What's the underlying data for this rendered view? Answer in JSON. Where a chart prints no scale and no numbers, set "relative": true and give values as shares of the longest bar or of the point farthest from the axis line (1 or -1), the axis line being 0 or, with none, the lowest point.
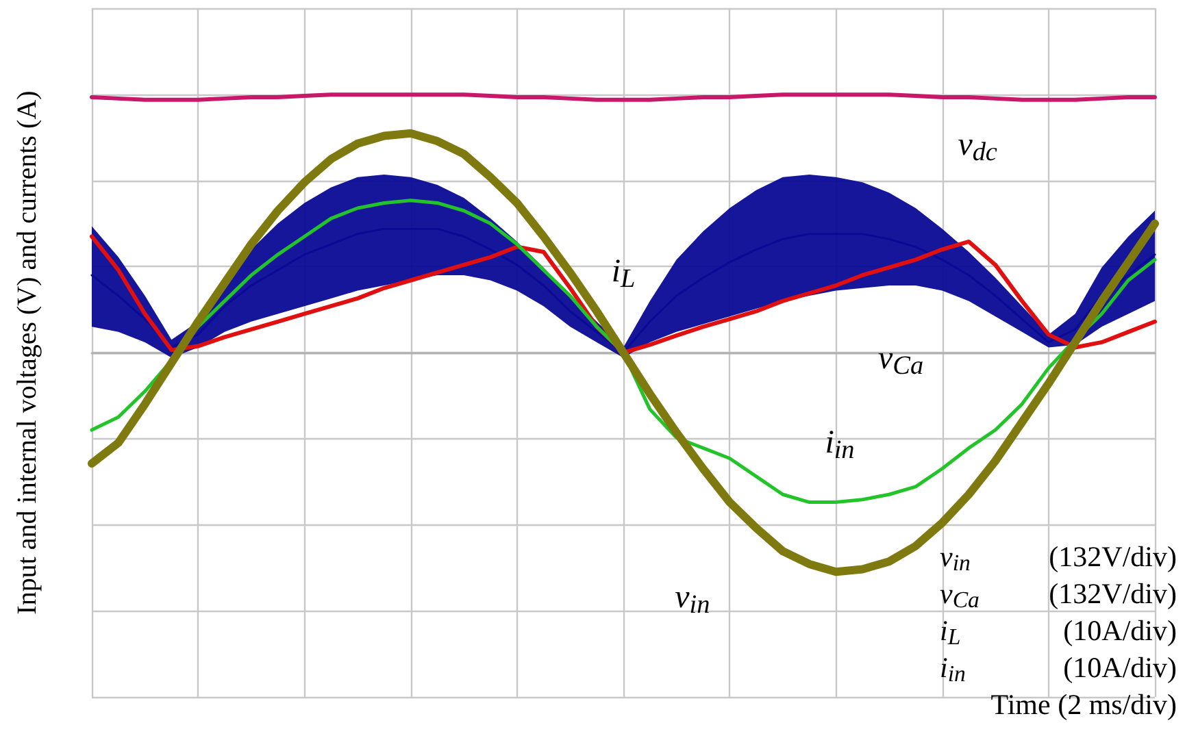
{
  "chart_data": {
    "type": "line",
    "relative": true,
    "ylabel": "Input and internal voltages (V) and currents (A)",
    "categories": [
      null,
      null,
      null,
      null,
      null,
      null,
      null,
      null,
      null,
      null,
      null,
      null,
      null,
      null,
      null,
      null,
      null,
      null,
      null,
      null,
      null,
      null,
      null,
      null,
      null,
      null,
      null,
      null,
      null,
      null,
      null,
      null,
      null,
      null,
      null,
      null,
      null,
      null,
      null,
      null,
      null
    ],
    "series": [
      {
        "name": "i$_{L}$",
        "color": "#0a0a96",
        "values": [
          0.3,
          0.22,
          0.13,
          0.02,
          0.07,
          0.18,
          0.26,
          0.32,
          0.38,
          0.42,
          0.46,
          0.48,
          0.48,
          0.48,
          0.45,
          0.4,
          0.34,
          0.26,
          0.16,
          0.08,
          0,
          0.12,
          0.22,
          0.29,
          0.35,
          0.4,
          0.44,
          0.46,
          0.46,
          0.46,
          0.44,
          0.41,
          0.36,
          0.3,
          0.22,
          0.13,
          0.04,
          0.09,
          0.22,
          0.3,
          0.38
        ],
        "upper": [
          0.49,
          0.37,
          0.22,
          0.05,
          0.12,
          0.28,
          0.4,
          0.5,
          0.58,
          0.64,
          0.68,
          0.69,
          0.68,
          0.65,
          0.6,
          0.52,
          0.43,
          0.33,
          0.22,
          0.12,
          0.02,
          0.2,
          0.36,
          0.47,
          0.56,
          0.63,
          0.68,
          0.69,
          0.68,
          0.66,
          0.62,
          0.56,
          0.48,
          0.39,
          0.29,
          0.18,
          0.07,
          0.15,
          0.33,
          0.45,
          0.55
        ],
        "lower": [
          0.1,
          0.08,
          0.04,
          -0.02,
          0.02,
          0.08,
          0.12,
          0.15,
          0.18,
          0.21,
          0.24,
          0.26,
          0.28,
          0.3,
          0.3,
          0.28,
          0.24,
          0.18,
          0.1,
          0.04,
          -0.02,
          0.04,
          0.08,
          0.11,
          0.14,
          0.17,
          0.2,
          0.22,
          0.24,
          0.25,
          0.26,
          0.26,
          0.24,
          0.2,
          0.14,
          0.08,
          0.02,
          0.03,
          0.1,
          0.15,
          0.2
        ]
      },
      {
        "name": "v$_{Ca}$",
        "color": "#e01010",
        "values": [
          0.45,
          0.32,
          0.15,
          0.01,
          0.025,
          0.06,
          0.09,
          0.12,
          0.15,
          0.18,
          0.21,
          0.25,
          0.28,
          0.31,
          0.34,
          0.37,
          0.41,
          0.39,
          0.25,
          0.1,
          0,
          0.03,
          0.066,
          0.1,
          0.13,
          0.16,
          0.2,
          0.23,
          0.26,
          0.3,
          0.33,
          0.36,
          0.4,
          0.43,
          0.34,
          0.2,
          0.07,
          0.02,
          0.04,
          0.08,
          0.12
        ]
      },
      {
        "name": "i$_{in}$",
        "color": "#22c42a",
        "values": [
          -0.3,
          -0.25,
          -0.15,
          -0.03,
          0.1,
          0.2,
          0.3,
          0.38,
          0.45,
          0.52,
          0.56,
          0.58,
          0.59,
          0.58,
          0.55,
          0.5,
          0.42,
          0.32,
          0.22,
          0.1,
          0,
          -0.22,
          -0.33,
          -0.37,
          -0.41,
          -0.48,
          -0.55,
          -0.58,
          -0.58,
          -0.57,
          -0.55,
          -0.52,
          -0.45,
          -0.37,
          -0.3,
          -0.2,
          -0.06,
          0.05,
          0.15,
          0.28,
          0.36
        ]
      },
      {
        "name": "v$_{in}$",
        "color": "#7f7a10",
        "values": [
          -0.43,
          -0.35,
          -0.2,
          -0.04,
          0.12,
          0.27,
          0.42,
          0.55,
          0.66,
          0.75,
          0.81,
          0.84,
          0.85,
          0.82,
          0.77,
          0.68,
          0.58,
          0.45,
          0.31,
          0.16,
          0,
          -0.16,
          -0.31,
          -0.45,
          -0.58,
          -0.68,
          -0.77,
          -0.82,
          -0.85,
          -0.84,
          -0.81,
          -0.75,
          -0.66,
          -0.55,
          -0.42,
          -0.27,
          -0.12,
          0.04,
          0.2,
          0.35,
          0.5
        ]
      },
      {
        "name": "v$_{dc}$",
        "color": "#c8186a",
        "values": [
          0.99,
          0.985,
          0.98,
          0.98,
          0.98,
          0.985,
          0.99,
          0.99,
          0.995,
          1,
          1,
          1,
          1,
          1,
          1,
          0.995,
          0.99,
          0.99,
          0.985,
          0.98,
          0.98,
          0.98,
          0.985,
          0.99,
          0.99,
          0.995,
          1,
          1,
          1,
          1,
          1,
          0.995,
          0.99,
          0.99,
          0.985,
          0.98,
          0.98,
          0.98,
          0.985,
          0.99,
          0.99
        ]
      }
    ],
    "annotations": [
      "v$_{in}$ (132V/div)",
      "v$_{Ca}$ (132V/div)",
      "i$_{L}$ (10A/div)",
      "i$_{in}$ (10A/div)",
      "Time (2 ms/div)"
    ],
    "grid": true,
    "legend": false,
    "line_style": "solid"
  }
}
